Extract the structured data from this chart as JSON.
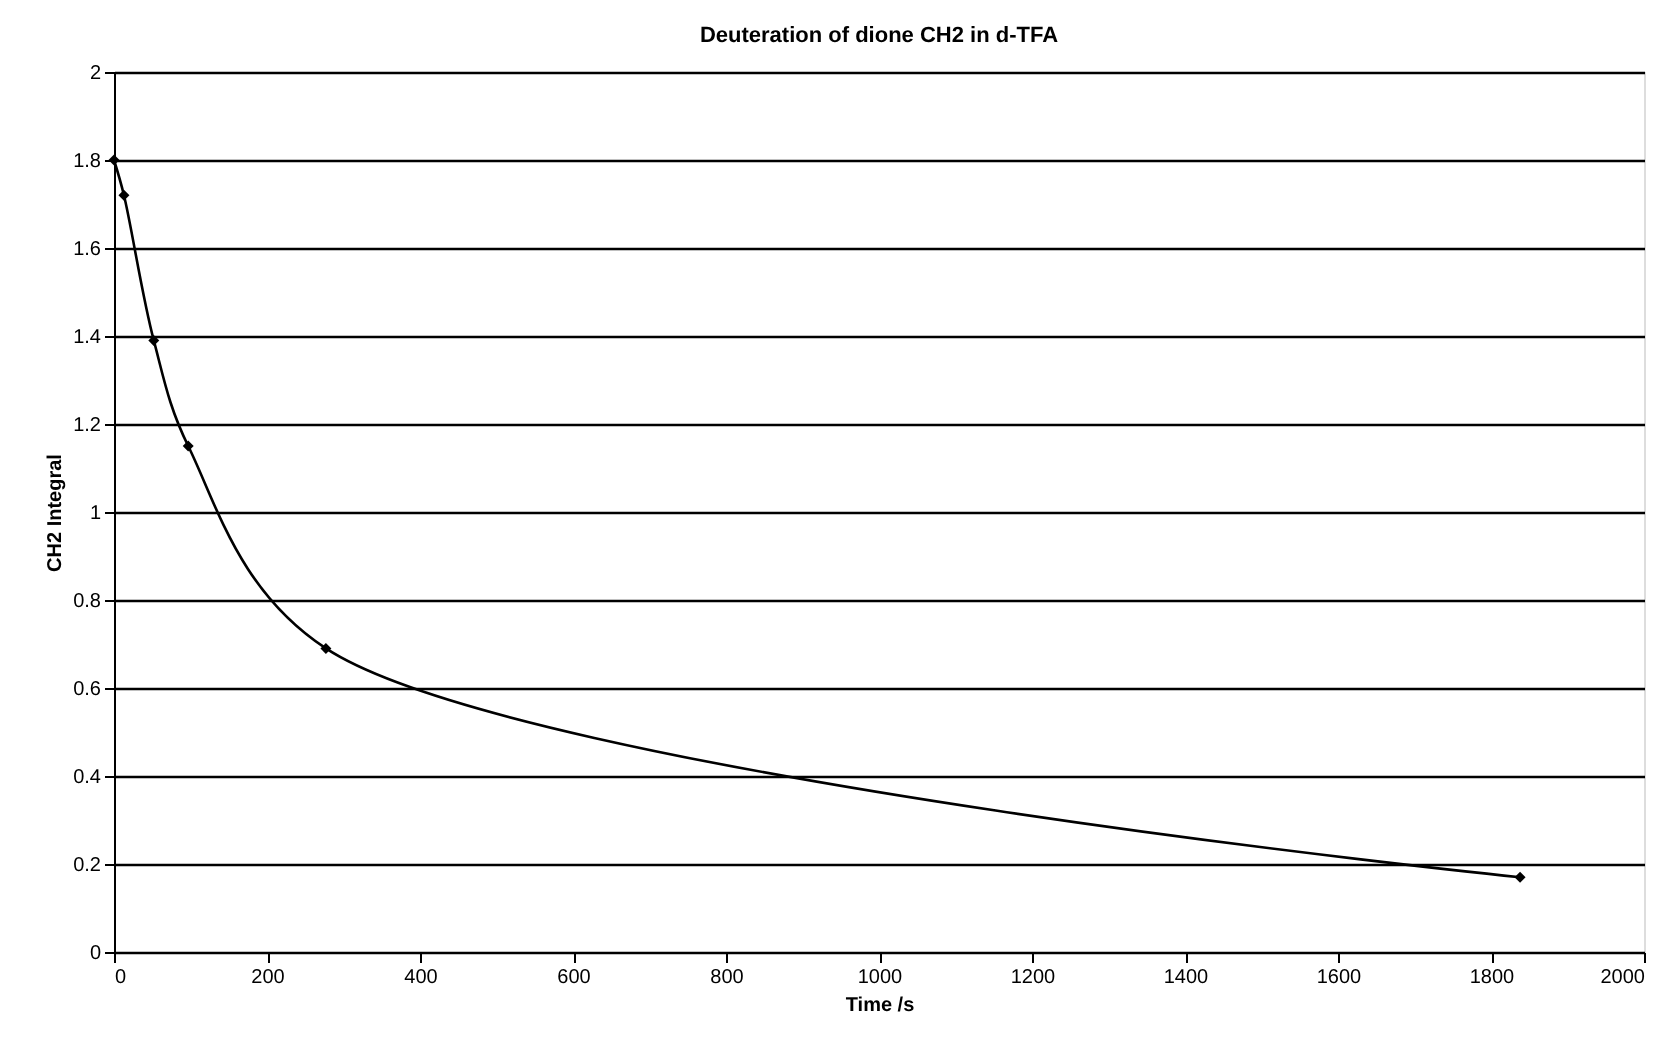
{
  "chart_data": {
    "type": "line",
    "title": "Deuteration of dione CH2 in d-TFA",
    "xlabel": "Time /s",
    "ylabel": "CH2 Integral",
    "x": [
      0,
      13,
      52,
      97,
      277,
      1838
    ],
    "series": [
      {
        "color": "#000000",
        "values": [
          1.8,
          1.72,
          1.39,
          1.15,
          0.69,
          0.17
        ]
      }
    ],
    "xlim": [
      0,
      2000
    ],
    "xticks": [
      0,
      200,
      400,
      600,
      800,
      1000,
      1200,
      1400,
      1600,
      1800,
      2000
    ],
    "ylim": [
      0,
      2
    ],
    "yticks": [
      0,
      0.2,
      0.4,
      0.6,
      0.8,
      1,
      1.2,
      1.4,
      1.6,
      1.8,
      2
    ],
    "grid": "y",
    "marker": "diamond",
    "line_style": "solid"
  }
}
